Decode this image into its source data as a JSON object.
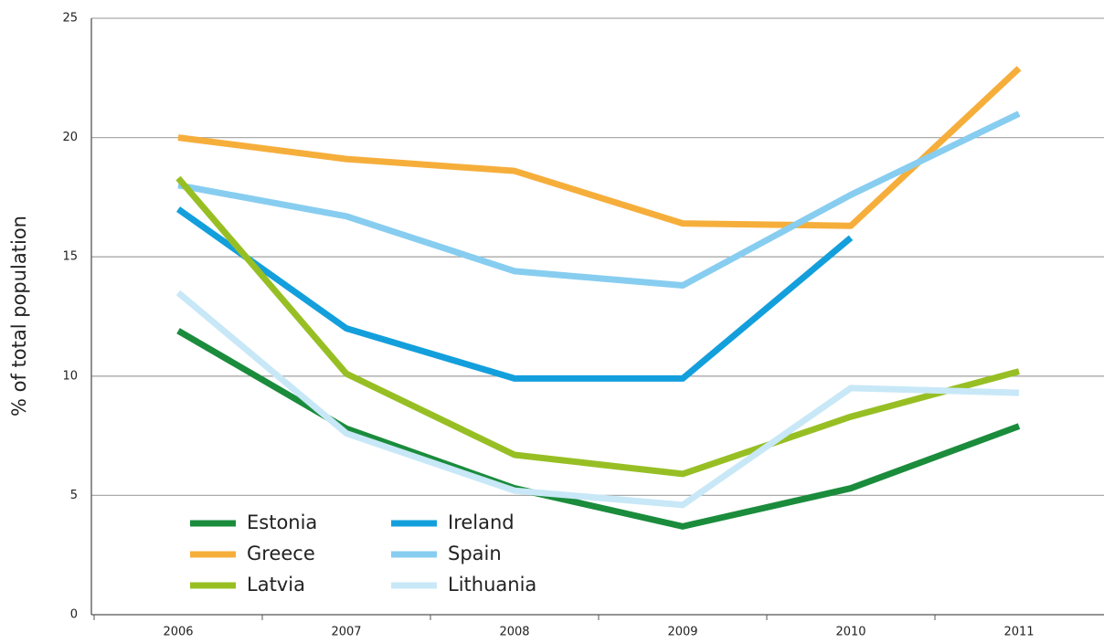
{
  "chart_data": {
    "type": "line",
    "y_label": "% of total population",
    "categories": [
      "2006",
      "2007",
      "2008",
      "2009",
      "2010",
      "2011"
    ],
    "series": [
      {
        "name": "Estonia",
        "color": "#1a8c3c",
        "values": [
          11.9,
          7.8,
          5.3,
          3.7,
          5.3,
          7.9
        ]
      },
      {
        "name": "Ireland",
        "color": "#139fdc",
        "values": [
          17.0,
          12.0,
          9.9,
          9.9,
          15.8,
          null
        ]
      },
      {
        "name": "Greece",
        "color": "#f6ae3b",
        "values": [
          20.0,
          19.1,
          18.6,
          16.4,
          16.3,
          22.9
        ]
      },
      {
        "name": "Spain",
        "color": "#87cdf0",
        "values": [
          18.0,
          16.7,
          14.4,
          13.8,
          17.6,
          21.0
        ]
      },
      {
        "name": "Latvia",
        "color": "#97bf24",
        "values": [
          18.3,
          10.1,
          6.7,
          5.9,
          8.3,
          10.2
        ]
      },
      {
        "name": "Lithuania",
        "color": "#c8e8f7",
        "values": [
          13.5,
          7.6,
          5.2,
          4.6,
          9.5,
          9.3
        ]
      }
    ],
    "ylim": [
      0,
      25
    ],
    "yticks": [
      0,
      5,
      10,
      15,
      20,
      25
    ],
    "grid": true,
    "legend": "lower left"
  }
}
